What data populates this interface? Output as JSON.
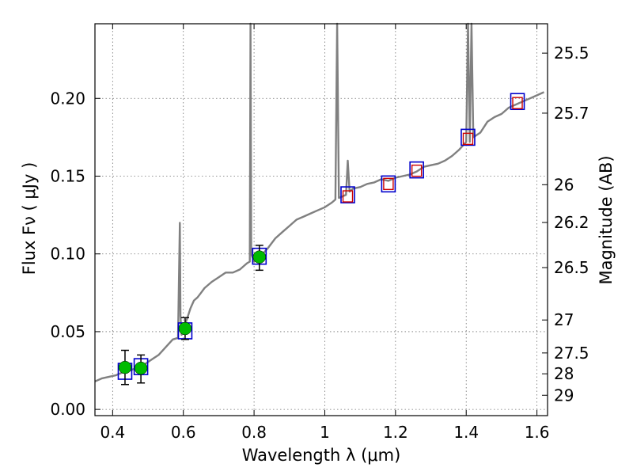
{
  "chart_data": {
    "type": "line",
    "xlabel": "Wavelength  λ (μm)",
    "ylabel": "Flux  Fν  ( μJy )",
    "ylabel_right": "Magnitude (AB)",
    "xlim": [
      0.35,
      1.63
    ],
    "ylim": [
      -0.004,
      0.248
    ],
    "x_ticks": [
      0.4,
      0.6,
      0.8,
      1.0,
      1.2,
      1.4,
      1.6
    ],
    "x_tick_labels": [
      "0.4",
      "0.6",
      "0.8",
      "1",
      "1.2",
      "1.4",
      "1.6"
    ],
    "y_ticks": [
      0.0,
      0.05,
      0.1,
      0.15,
      0.2
    ],
    "y_tick_labels": [
      "0.00",
      "0.05",
      "0.10",
      "0.15",
      "0.20"
    ],
    "right_ticks": [
      {
        "label": "25.5",
        "flux": 0.2291
      },
      {
        "label": "25.7",
        "flux": 0.1905
      },
      {
        "label": "26",
        "flux": 0.1445
      },
      {
        "label": "26.2",
        "flux": 0.1202
      },
      {
        "label": "26.5",
        "flux": 0.0912
      },
      {
        "label": "27",
        "flux": 0.0575
      },
      {
        "label": "27.5",
        "flux": 0.0363
      },
      {
        "label": "28",
        "flux": 0.0229
      },
      {
        "label": "29",
        "flux": 0.0091
      }
    ],
    "grid": true,
    "colors": {
      "spectrum": "#808080",
      "observed": "#00bb00",
      "model_box": "#0000cc",
      "photometry_box": "#cc0000"
    },
    "spectrum": {
      "x": [
        0.35,
        0.37,
        0.39,
        0.41,
        0.43,
        0.45,
        0.47,
        0.49,
        0.51,
        0.53,
        0.55,
        0.57,
        0.585,
        0.59,
        0.592,
        0.595,
        0.6,
        0.61,
        0.62,
        0.63,
        0.64,
        0.65,
        0.66,
        0.68,
        0.7,
        0.72,
        0.74,
        0.76,
        0.78,
        0.788,
        0.79,
        0.792,
        0.8,
        0.82,
        0.84,
        0.86,
        0.88,
        0.9,
        0.92,
        0.94,
        0.96,
        0.98,
        1.0,
        1.02,
        1.03,
        1.035,
        1.04,
        1.06,
        1.065,
        1.07,
        1.08,
        1.1,
        1.12,
        1.14,
        1.16,
        1.18,
        1.2,
        1.22,
        1.24,
        1.26,
        1.28,
        1.3,
        1.32,
        1.34,
        1.36,
        1.38,
        1.4,
        1.405,
        1.41,
        1.415,
        1.42,
        1.44,
        1.46,
        1.48,
        1.5,
        1.52,
        1.54,
        1.56,
        1.58,
        1.6,
        1.62
      ],
      "y": [
        0.018,
        0.02,
        0.021,
        0.022,
        0.024,
        0.025,
        0.027,
        0.029,
        0.032,
        0.035,
        0.04,
        0.045,
        0.046,
        0.12,
        0.06,
        0.048,
        0.052,
        0.058,
        0.065,
        0.07,
        0.072,
        0.075,
        0.078,
        0.082,
        0.085,
        0.088,
        0.088,
        0.09,
        0.094,
        0.095,
        0.25,
        0.1,
        0.095,
        0.099,
        0.104,
        0.11,
        0.114,
        0.118,
        0.122,
        0.124,
        0.126,
        0.128,
        0.13,
        0.133,
        0.135,
        0.25,
        0.136,
        0.138,
        0.16,
        0.14,
        0.142,
        0.143,
        0.145,
        0.146,
        0.148,
        0.147,
        0.149,
        0.15,
        0.151,
        0.153,
        0.156,
        0.157,
        0.158,
        0.16,
        0.163,
        0.167,
        0.172,
        0.25,
        0.172,
        0.25,
        0.175,
        0.178,
        0.185,
        0.188,
        0.19,
        0.194,
        0.196,
        0.198,
        0.2,
        0.202,
        0.204
      ]
    },
    "observed_points": [
      {
        "x": 0.435,
        "y": 0.027,
        "err_low": 0.011,
        "err_high": 0.011
      },
      {
        "x": 0.48,
        "y": 0.0265,
        "err_low": 0.0095,
        "err_high": 0.0085
      },
      {
        "x": 0.605,
        "y": 0.052,
        "err_low": 0.007,
        "err_high": 0.007
      },
      {
        "x": 0.815,
        "y": 0.098,
        "err_low": 0.0085,
        "err_high": 0.0075
      }
    ],
    "model_boxes": [
      {
        "x": 0.435,
        "y": 0.0245
      },
      {
        "x": 0.48,
        "y": 0.0275
      },
      {
        "x": 0.605,
        "y": 0.0505
      },
      {
        "x": 0.815,
        "y": 0.0985
      },
      {
        "x": 1.065,
        "y": 0.138
      },
      {
        "x": 1.18,
        "y": 0.145
      },
      {
        "x": 1.26,
        "y": 0.154
      },
      {
        "x": 1.405,
        "y": 0.175
      },
      {
        "x": 1.545,
        "y": 0.198
      }
    ],
    "photometry_boxes": [
      {
        "x": 1.065,
        "y": 0.137
      },
      {
        "x": 1.18,
        "y": 0.145
      },
      {
        "x": 1.26,
        "y": 0.1535
      },
      {
        "x": 1.405,
        "y": 0.174
      },
      {
        "x": 1.545,
        "y": 0.197
      }
    ]
  }
}
